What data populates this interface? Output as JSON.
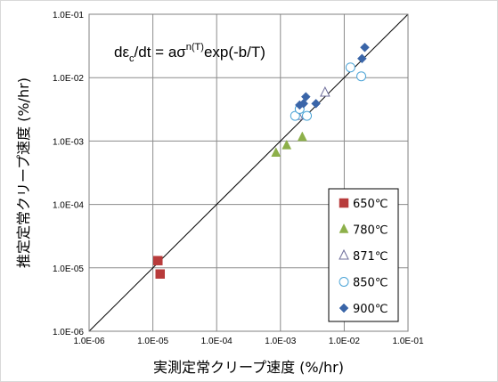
{
  "chart_data": {
    "type": "scatter",
    "title": "",
    "xlabel": "実測定常クリープ速度 (%/hr)",
    "ylabel": "推定定常クリープ速度 (%/hr)",
    "xscale": "log",
    "yscale": "log",
    "xlim": [
      1e-06,
      0.1
    ],
    "ylim": [
      1e-06,
      0.1
    ],
    "grid": true,
    "x_tick_labels": [
      "1.0E-06",
      "1.0E-05",
      "1.0E-04",
      "1.0E-03",
      "1.0E-02",
      "1.0E-01"
    ],
    "y_tick_labels": [
      "1.0E-06",
      "1.0E-05",
      "1.0E-04",
      "1.0E-03",
      "1.0E-02",
      "1.0E-01"
    ],
    "annotation": {
      "prefix": "dε",
      "sub": "c",
      "middle": "/dt = aσ",
      "sup": "n(T)",
      "suffix": "exp(-b/T)"
    },
    "legend_position": "lower-right",
    "reference_line": {
      "x": [
        1e-06,
        0.1
      ],
      "y": [
        1e-06,
        0.1
      ]
    },
    "series": [
      {
        "name": "650℃",
        "marker": "square",
        "color": "#b83b3b",
        "filled": true,
        "points": [
          [
            1.2e-05,
            1.3e-05
          ],
          [
            1.3e-05,
            8e-06
          ]
        ]
      },
      {
        "name": "780℃",
        "marker": "triangle",
        "color": "#8db04a",
        "filled": true,
        "points": [
          [
            0.00085,
            0.00065
          ],
          [
            0.00125,
            0.00085
          ],
          [
            0.0022,
            0.00115
          ]
        ]
      },
      {
        "name": "871℃",
        "marker": "triangle",
        "color": "#6c6c9a",
        "filled": false,
        "points": [
          [
            0.0019,
            0.0025
          ],
          [
            0.005,
            0.0058
          ]
        ]
      },
      {
        "name": "850℃",
        "marker": "circle",
        "color": "#4aa3d6",
        "filled": false,
        "points": [
          [
            0.0017,
            0.0025
          ],
          [
            0.002,
            0.0032
          ],
          [
            0.0026,
            0.0025
          ],
          [
            0.0125,
            0.0145
          ],
          [
            0.0185,
            0.0105
          ]
        ]
      },
      {
        "name": "900℃",
        "marker": "diamond",
        "color": "#3a65a8",
        "filled": true,
        "points": [
          [
            0.002,
            0.0037
          ],
          [
            0.0023,
            0.0039
          ],
          [
            0.0025,
            0.005
          ],
          [
            0.0036,
            0.0039
          ],
          [
            0.019,
            0.02
          ],
          [
            0.021,
            0.03
          ]
        ]
      }
    ]
  }
}
